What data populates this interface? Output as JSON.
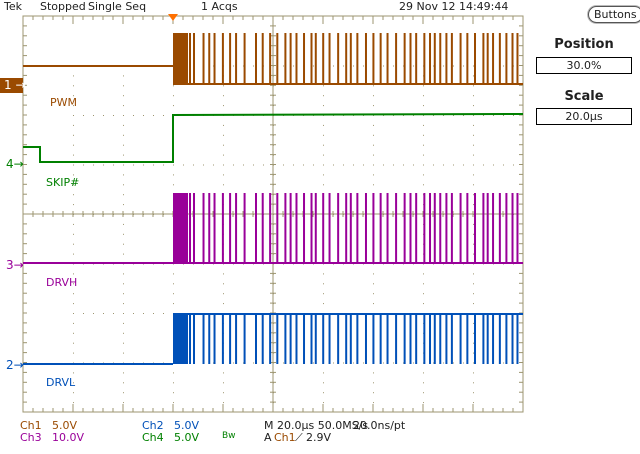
{
  "header": {
    "brand": "Tek",
    "status": "Stopped",
    "mode": "Single Seq",
    "acqs": "1 Acqs",
    "datetime": "29 Nov 12 14:49:44"
  },
  "side_panel": {
    "buttons_label": "Buttons",
    "position_label": "Position",
    "position_value": "30.0%",
    "scale_label": "Scale",
    "scale_value": "20.0µs"
  },
  "channels": [
    {
      "id": "ch1",
      "marker": "1",
      "label": "PWM",
      "readout_name": "Ch1",
      "scale": "5.0V",
      "color": "#9a4a00"
    },
    {
      "id": "ch4",
      "marker": "4",
      "label": "SKIP#",
      "readout_name": "Ch4",
      "scale": "5.0V",
      "color": "#008000"
    },
    {
      "id": "ch3",
      "marker": "3",
      "label": "DRVH",
      "readout_name": "Ch3",
      "scale": "10.0V",
      "color": "#990099"
    },
    {
      "id": "ch2",
      "marker": "2",
      "label": "DRVL",
      "readout_name": "Ch2",
      "scale": "5.0V",
      "color": "#0050b8"
    }
  ],
  "footer": {
    "bw": "Bw",
    "timebase": "M 20.0µs 50.0MS/s",
    "resolution": "20.0ns/pt",
    "trigger_prefix": "A",
    "trigger_source": "Ch1",
    "trigger_slope_icon": "rising-edge-icon",
    "trigger_level": "2.9V"
  },
  "colors": {
    "graticule": "#9c9570",
    "trigger_marker": "#ff7000"
  }
}
